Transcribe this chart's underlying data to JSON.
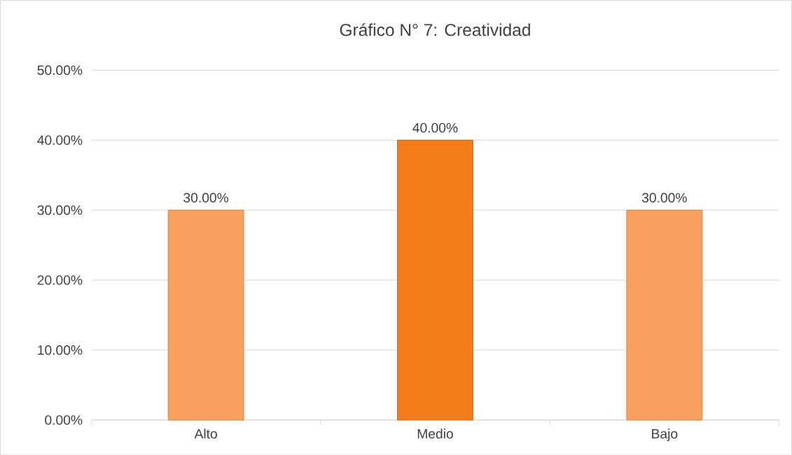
{
  "chart_data": {
    "type": "bar",
    "title": "Gráfico N° 7: Creatividad",
    "categories": [
      "Alto",
      "Medio",
      "Bajo"
    ],
    "values": [
      30,
      40,
      30
    ],
    "colors": [
      "#f8a15e",
      "#f57c1a",
      "#f8a15e"
    ],
    "value_labels": [
      "30.00%",
      "40.00%",
      "30.00%"
    ],
    "ylim": [
      0,
      50
    ],
    "yticks": [
      {
        "value": 0,
        "label": "0.00%"
      },
      {
        "value": 10,
        "label": "10.00%"
      },
      {
        "value": 20,
        "label": "20.00%"
      },
      {
        "value": 30,
        "label": "30.00%"
      },
      {
        "value": 40,
        "label": "40.00%"
      },
      {
        "value": 50,
        "label": "50.00%"
      }
    ],
    "grid": "y"
  }
}
